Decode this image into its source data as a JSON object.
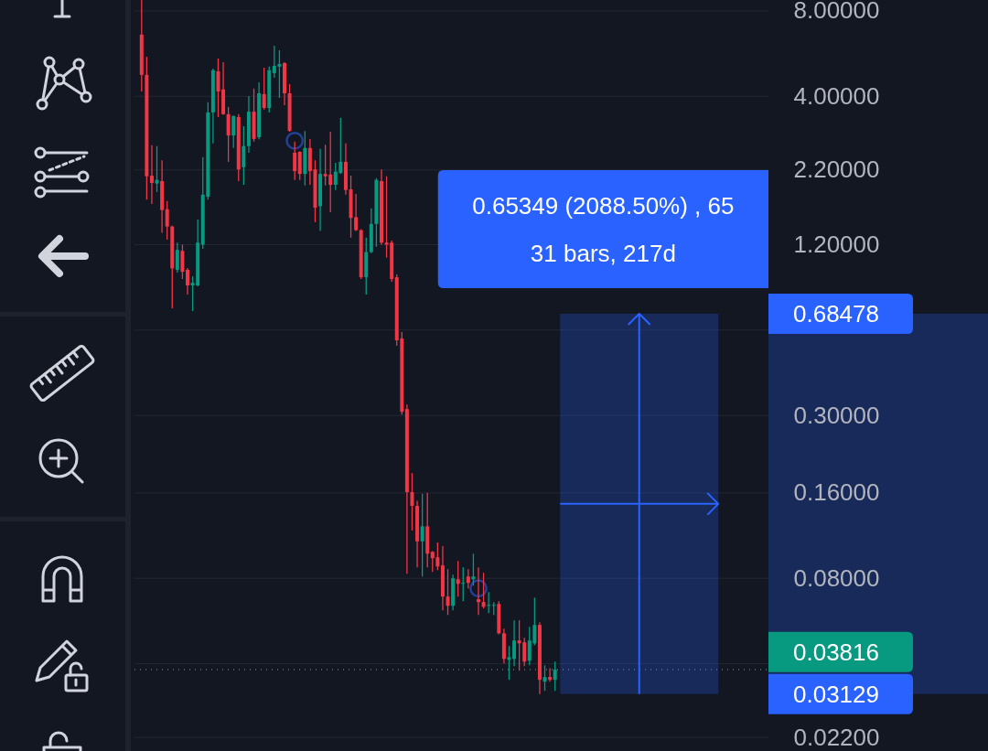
{
  "chart_data": {
    "type": "candlestick",
    "categories": [
      null,
      null,
      null,
      null,
      null,
      null,
      null,
      null,
      null,
      null,
      null,
      null,
      null,
      null,
      null,
      null,
      null,
      null,
      null,
      null,
      null,
      null,
      null,
      null,
      null,
      null,
      null,
      null,
      null,
      null,
      null,
      null,
      null,
      null,
      null,
      null,
      null,
      null,
      null,
      null,
      null,
      null,
      null,
      null,
      null,
      null,
      null,
      null,
      null,
      null,
      null,
      null,
      null,
      null,
      null,
      null,
      null,
      null,
      null,
      null,
      null,
      null,
      null,
      null,
      null,
      null,
      null,
      null,
      null,
      null,
      null,
      null,
      null,
      null,
      null,
      null,
      null,
      null,
      null,
      null,
      null,
      null,
      null,
      null,
      null,
      null,
      null,
      null,
      null,
      null,
      null,
      null,
      null,
      null,
      null,
      null,
      null,
      null,
      null,
      null,
      null,
      null,
      null,
      null,
      null,
      null,
      null,
      null,
      null,
      null,
      null,
      null,
      null,
      null
    ],
    "ohlc": [
      [
        6.6,
        8.74,
        4.16,
        4.76
      ],
      [
        4.76,
        5.51,
        1.73,
        2.09
      ],
      [
        2.1,
        2.69,
        1.67,
        1.98
      ],
      [
        1.97,
        2.67,
        1.84,
        2.03
      ],
      [
        2.01,
        2.38,
        1.32,
        1.59
      ],
      [
        1.6,
        1.71,
        1.25,
        1.39
      ],
      [
        1.39,
        1.4,
        0.716,
        0.99
      ],
      [
        0.978,
        1.22,
        0.956,
        1.15
      ],
      [
        1.14,
        1.2,
        0.908,
        0.963
      ],
      [
        0.978,
        0.992,
        0.8,
        0.862
      ],
      [
        0.862,
        0.928,
        0.7,
        0.881
      ],
      [
        0.862,
        1.47,
        0.855,
        1.22
      ],
      [
        1.2,
        2.44,
        1.16,
        1.8
      ],
      [
        1.77,
        3.81,
        1.73,
        3.51
      ],
      [
        3.51,
        5.01,
        2.73,
        4.94
      ],
      [
        4.9,
        5.44,
        3.38,
        4.16
      ],
      [
        4.23,
        5.28,
        3.44,
        3.46
      ],
      [
        3.46,
        3.67,
        2.35,
        2.91
      ],
      [
        2.91,
        3.42,
        2.63,
        3.41
      ],
      [
        3.38,
        3.46,
        2.01,
        2.21
      ],
      [
        2.25,
        3.14,
        1.95,
        2.67
      ],
      [
        2.67,
        4.01,
        2.53,
        3.53
      ],
      [
        3.53,
        4.26,
        2.77,
        2.83
      ],
      [
        2.87,
        4.48,
        2.82,
        4.1
      ],
      [
        4.07,
        5.05,
        3.59,
        3.64
      ],
      [
        3.64,
        5.09,
        3.51,
        4.94
      ],
      [
        4.83,
        6.03,
        4.65,
        5.12
      ],
      [
        5.09,
        5.81,
        3.95,
        5.2
      ],
      [
        5.24,
        5.28,
        3.72,
        4.1
      ],
      [
        4.1,
        4.42,
        3.0,
        3.02
      ],
      [
        2.53,
        2.77,
        2.03,
        2.18
      ],
      [
        2.55,
        2.56,
        2.03,
        2.13
      ],
      [
        2.13,
        3.02,
        1.94,
        2.63
      ],
      [
        2.63,
        2.83,
        1.95,
        2.18
      ],
      [
        2.21,
        2.38,
        1.44,
        1.62
      ],
      [
        1.64,
        2.61,
        1.34,
        2.13
      ],
      [
        2.13,
        2.7,
        1.94,
        2.09
      ],
      [
        2.12,
        3.0,
        1.56,
        1.95
      ],
      [
        1.95,
        2.33,
        1.87,
        2.17
      ],
      [
        2.15,
        3.36,
        2.13,
        2.35
      ],
      [
        2.35,
        2.73,
        1.8,
        1.87
      ],
      [
        1.88,
        2.1,
        1.27,
        1.49
      ],
      [
        1.5,
        1.81,
        1.34,
        1.35
      ],
      [
        1.35,
        1.36,
        0.908,
        0.921
      ],
      [
        0.921,
        1.27,
        0.8,
        1.13
      ],
      [
        1.13,
        1.61,
        1.12,
        1.42
      ],
      [
        1.42,
        2.06,
        1.18,
        2.03
      ],
      [
        2.01,
        2.21,
        1.2,
        1.22
      ],
      [
        1.22,
        2.09,
        1.08,
        1.2
      ],
      [
        1.22,
        1.24,
        0.888,
        0.908
      ],
      [
        0.921,
        0.942,
        0.528,
        0.552
      ],
      [
        0.56,
        0.59,
        0.302,
        0.309
      ],
      [
        0.316,
        0.328,
        0.083,
        0.161
      ],
      [
        0.161,
        0.188,
        0.118,
        0.144
      ],
      [
        0.144,
        0.15,
        0.0874,
        0.108
      ],
      [
        0.108,
        0.159,
        0.0812,
        0.122
      ],
      [
        0.122,
        0.16,
        0.0874,
        0.0977
      ],
      [
        0.0992,
        0.0997,
        0.0843,
        0.0942
      ],
      [
        0.0949,
        0.107,
        0.0855,
        0.0881
      ],
      [
        0.0888,
        0.104,
        0.0617,
        0.069
      ],
      [
        0.069,
        0.0862,
        0.0594,
        0.064
      ],
      [
        0.064,
        0.0824,
        0.0617,
        0.08
      ],
      [
        0.0794,
        0.0921,
        0.069,
        0.0765
      ],
      [
        0.0765,
        0.0874,
        0.0665,
        0.0771
      ],
      [
        0.0812,
        0.0862,
        0.0737,
        0.0771
      ],
      [
        0.0794,
        0.0977,
        0.0754,
        0.0812
      ],
      [
        0.0675,
        0.0874,
        0.0594,
        0.066
      ],
      [
        0.066,
        0.0837,
        0.0626,
        0.0635
      ],
      [
        0.064,
        0.0716,
        0.0603,
        0.0645
      ],
      [
        0.064,
        0.066,
        0.0594,
        0.0645
      ],
      [
        0.065,
        0.0665,
        0.0508,
        0.0512
      ],
      [
        0.0512,
        0.0532,
        0.0401,
        0.0416
      ],
      [
        0.0413,
        0.0462,
        0.0351,
        0.0422
      ],
      [
        0.0416,
        0.0569,
        0.0392,
        0.0483
      ],
      [
        0.0483,
        0.0569,
        0.0378,
        0.0472
      ],
      [
        0.0476,
        0.0494,
        0.0392,
        0.0407
      ],
      [
        0.041,
        0.054,
        0.0395,
        0.0483
      ],
      [
        0.0472,
        0.0684,
        0.0465,
        0.0548
      ],
      [
        0.0548,
        0.056,
        0.0313,
        0.0351
      ],
      [
        0.0346,
        0.0395,
        0.0321,
        0.0359
      ],
      [
        0.0359,
        0.0386,
        0.0346,
        0.0351
      ],
      [
        0.0351,
        0.0407,
        0.0321,
        0.03816
      ],
      null,
      null,
      null,
      null,
      null,
      null,
      null,
      null,
      null,
      null,
      null,
      null,
      null,
      null,
      null,
      null,
      null,
      null,
      null,
      null,
      null,
      null,
      null,
      null,
      null,
      null,
      null,
      null,
      null,
      null,
      null,
      null
    ],
    "colors": [
      "#f23645",
      "#f23645",
      "#f23645",
      "#089981",
      "#f23645",
      "#f23645",
      "#f23645",
      "#089981",
      "#f23645",
      "#f23645",
      "#089981",
      "#089981",
      "#089981",
      "#089981",
      "#089981",
      "#f23645",
      "#f23645",
      "#f23645",
      "#089981",
      "#f23645",
      "#089981",
      "#089981",
      "#f23645",
      "#089981",
      "#f23645",
      "#089981",
      "#089981",
      "#089981",
      "#f23645",
      "#f23645",
      "#f23645",
      "#f23645",
      "#089981",
      "#f23645",
      "#f23645",
      "#089981",
      "#f23645",
      "#f23645",
      "#089981",
      "#089981",
      "#f23645",
      "#f23645",
      "#f23645",
      "#f23645",
      "#089981",
      "#089981",
      "#089981",
      "#f23645",
      "#f23645",
      "#f23645",
      "#f23645",
      "#f23645",
      "#f23645",
      "#f23645",
      "#f23645",
      "#089981",
      "#f23645",
      "#f23645",
      "#f23645",
      "#f23645",
      "#f23645",
      "#089981",
      "#f23645",
      "#089981",
      "#f23645",
      "#089981",
      "#f23645",
      "#f23645",
      "#089981",
      "#089981",
      "#f23645",
      "#f23645",
      "#089981",
      "#089981",
      "#f23645",
      "#f23645",
      "#089981",
      "#089981",
      "#f23645",
      "#089981",
      "#f23645",
      "#089981",
      null,
      null,
      null,
      null,
      null,
      null,
      null,
      null,
      null,
      null,
      null,
      null,
      null,
      null,
      null,
      null,
      null,
      null,
      null,
      null,
      null,
      null,
      null,
      null,
      null,
      null,
      null,
      null,
      null,
      null,
      null,
      null
    ],
    "series": [
      {
        "type": "scatter",
        "color": "#2a50c8",
        "marker": "circle",
        "values": [
          null,
          null,
          null,
          null,
          null,
          null,
          null,
          null,
          null,
          null,
          null,
          null,
          null,
          null,
          null,
          null,
          null,
          null,
          null,
          null,
          null,
          null,
          null,
          null,
          null,
          null,
          null,
          null,
          null,
          null,
          2.79,
          null,
          null,
          null,
          null,
          null,
          null,
          null,
          null,
          null,
          null,
          null,
          null,
          null,
          null,
          null,
          null,
          null,
          null,
          null,
          null,
          null,
          null,
          null,
          null,
          null,
          null,
          null,
          null,
          null,
          null,
          null,
          null,
          null,
          null,
          null,
          0.0737,
          null,
          null,
          null,
          null,
          null,
          null,
          null,
          null,
          null,
          null,
          null,
          null,
          null,
          null,
          null,
          null,
          null,
          null,
          null,
          null,
          null,
          null,
          null,
          null,
          null,
          null,
          null,
          null,
          null,
          null,
          null,
          null,
          null,
          null,
          null,
          null,
          null,
          null,
          null,
          null,
          null,
          null,
          null,
          null,
          null,
          null,
          null
        ]
      }
    ],
    "ylim": [
      0.0197,
      8.74
    ],
    "yticks": [
      {
        "value": 8,
        "label": "8.00000"
      },
      {
        "value": 4,
        "label": "4.00000"
      },
      {
        "value": 2.2,
        "label": "2.20000"
      },
      {
        "value": 1.2,
        "label": "1.20000"
      },
      {
        "value": 0.6,
        "label": null
      },
      {
        "value": 0.3,
        "label": "0.30000"
      },
      {
        "value": 0.16,
        "label": "0.16000"
      },
      {
        "value": 0.08,
        "label": "0.08000"
      },
      {
        "value": 0.04,
        "label": null
      },
      {
        "value": 0.022,
        "label": "0.02200"
      }
    ],
    "log": "y",
    "grid": "y",
    "bands": [
      {
        "axis": "y",
        "from": 0.03129,
        "to": 0.68478,
        "color": "#2962ff"
      }
    ],
    "ref_lines": [
      {
        "axis": "y",
        "value": 0.03816,
        "label": "0.03816",
        "color": "#089981",
        "line_style": "dotted"
      }
    ],
    "annotations": [
      "0.65349 (2088.50%) , 65",
      "31 bars, 217d",
      "0.68478",
      "0.03129"
    ]
  }
}
